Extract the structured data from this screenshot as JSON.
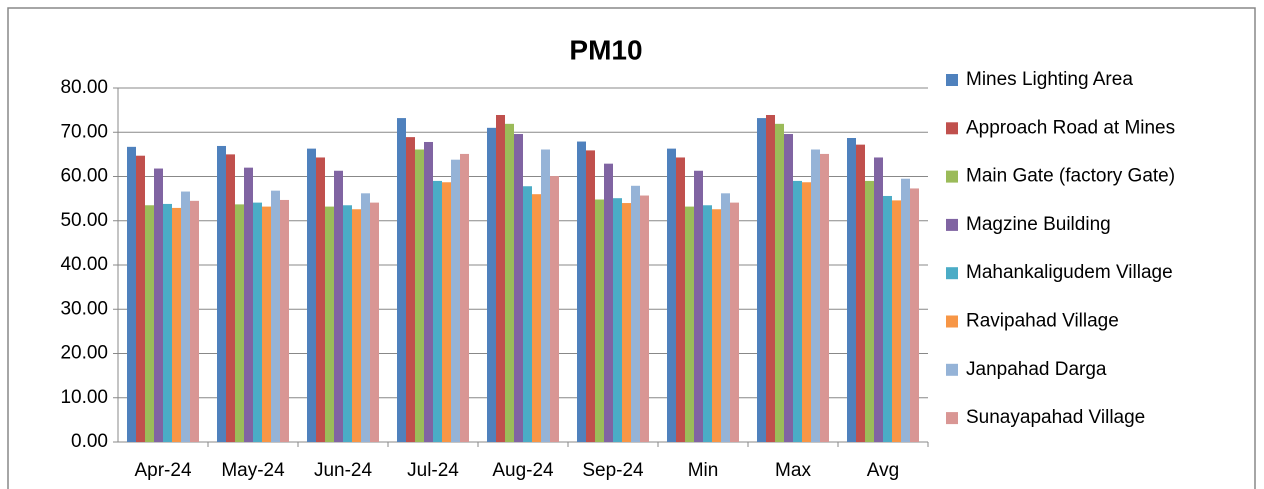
{
  "chart_data": {
    "type": "bar",
    "title": "PM10",
    "categories": [
      "Apr-24",
      "May-24",
      "Jun-24",
      "Jul-24",
      "Aug-24",
      "Sep-24",
      "Min",
      "Max",
      "Avg"
    ],
    "series": [
      {
        "name": "Mines Lighting Area",
        "color": "#4f81bd",
        "values": [
          66.7,
          66.9,
          66.3,
          73.2,
          71.0,
          67.9,
          66.3,
          73.2,
          68.7
        ]
      },
      {
        "name": "Approach Road at Mines",
        "color": "#c0504d",
        "values": [
          64.7,
          65.0,
          64.3,
          68.9,
          73.9,
          65.9,
          64.3,
          73.9,
          67.2
        ]
      },
      {
        "name": "Main Gate (factory Gate)",
        "color": "#9bbb59",
        "values": [
          53.5,
          53.7,
          53.2,
          66.1,
          71.9,
          54.8,
          53.2,
          71.9,
          59.0
        ]
      },
      {
        "name": "Magzine Building",
        "color": "#8064a2",
        "values": [
          61.8,
          62.0,
          61.3,
          67.8,
          69.6,
          62.9,
          61.3,
          69.6,
          64.3
        ]
      },
      {
        "name": "Mahankaligudem Village",
        "color": "#4bacc6",
        "values": [
          53.8,
          54.1,
          53.5,
          59.0,
          57.8,
          55.1,
          53.5,
          59.0,
          55.6
        ]
      },
      {
        "name": "Ravipahad Village",
        "color": "#f79646",
        "values": [
          52.9,
          53.2,
          52.6,
          58.7,
          56.0,
          54.0,
          52.6,
          58.7,
          54.6
        ]
      },
      {
        "name": "Janpahad Darga",
        "color": "#95b3d7",
        "values": [
          56.6,
          56.8,
          56.2,
          63.8,
          66.1,
          57.9,
          56.2,
          66.1,
          59.5
        ]
      },
      {
        "name": "Sunayapahad Village",
        "color": "#d99694",
        "values": [
          54.5,
          54.7,
          54.1,
          65.1,
          60.1,
          55.7,
          54.1,
          65.1,
          57.3
        ]
      }
    ],
    "ylim": [
      0,
      80
    ],
    "yticks": [
      {
        "value": 0,
        "label": "0.00"
      },
      {
        "value": 10,
        "label": "10.00"
      },
      {
        "value": 20,
        "label": "20.00"
      },
      {
        "value": 30,
        "label": "30.00"
      },
      {
        "value": 40,
        "label": "40.00"
      },
      {
        "value": 50,
        "label": "50.00"
      },
      {
        "value": 60,
        "label": "60.00"
      },
      {
        "value": 70,
        "label": "70.00"
      },
      {
        "value": 80,
        "label": "80.00"
      }
    ],
    "grid": true,
    "legend": "right"
  }
}
